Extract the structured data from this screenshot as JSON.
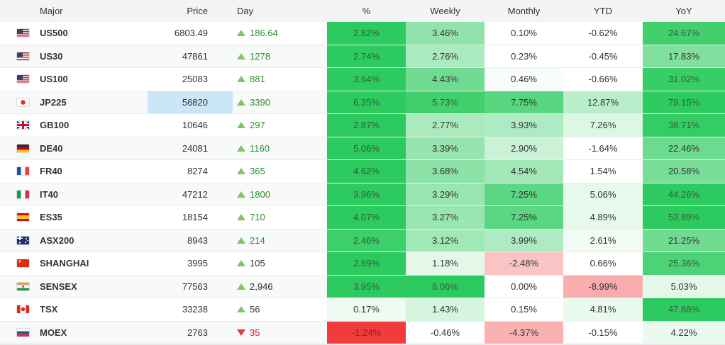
{
  "colors": {
    "green_base": "#2dcb5f",
    "red_base": "#f23b3b",
    "price_highlight": "#cbe7f7",
    "day_up_text": "#2f8c2f",
    "day_neutral_text": "#333333",
    "day_down_text": "#cc2222",
    "triangle_up": "#7fc567",
    "triangle_down": "#e23b3b",
    "heat_text": "#333333",
    "heat_text_strong_green": "#315c3d",
    "heat_text_strong_red": "#941f1f",
    "header_bg": "#f4f4f4",
    "row_alt_bg": "#f8f9f9",
    "border": "#ebecec"
  },
  "table": {
    "columns": [
      {
        "key": "major",
        "label": "Major"
      },
      {
        "key": "price",
        "label": "Price"
      },
      {
        "key": "day",
        "label": "Day"
      },
      {
        "key": "pct",
        "label": "%"
      },
      {
        "key": "weekly",
        "label": "Weekly"
      },
      {
        "key": "monthly",
        "label": "Monthly"
      },
      {
        "key": "ytd",
        "label": "YTD"
      },
      {
        "key": "yoy",
        "label": "YoY"
      }
    ],
    "rows": [
      {
        "flag": "us",
        "symbol": "US500",
        "price": "6803.49",
        "price_highlighted": false,
        "day": {
          "value": "186.64",
          "direction": "up",
          "value_color": "green"
        },
        "heat": [
          {
            "v": "2.82%",
            "tone": "green",
            "a": 1
          },
          {
            "v": "3.46%",
            "tone": "green",
            "a": 0.53
          },
          {
            "v": "0.10%",
            "tone": "none",
            "a": 0
          },
          {
            "v": "-0.62%",
            "tone": "none",
            "a": 0
          },
          {
            "v": "24.67%",
            "tone": "green",
            "a": 0.9
          }
        ]
      },
      {
        "flag": "us",
        "symbol": "US30",
        "price": "47861",
        "price_highlighted": false,
        "day": {
          "value": "1278",
          "direction": "up",
          "value_color": "green"
        },
        "heat": [
          {
            "v": "2.74%",
            "tone": "green",
            "a": 1
          },
          {
            "v": "2.76%",
            "tone": "green",
            "a": 0.4
          },
          {
            "v": "0.23%",
            "tone": "none",
            "a": 0
          },
          {
            "v": "-0.45%",
            "tone": "none",
            "a": 0
          },
          {
            "v": "17.83%",
            "tone": "green",
            "a": 0.6
          }
        ]
      },
      {
        "flag": "us",
        "symbol": "US100",
        "price": "25083",
        "price_highlighted": false,
        "day": {
          "value": "881",
          "direction": "up",
          "value_color": "green"
        },
        "heat": [
          {
            "v": "3.64%",
            "tone": "green",
            "a": 1
          },
          {
            "v": "4.43%",
            "tone": "green",
            "a": 0.68
          },
          {
            "v": "0.46%",
            "tone": "green",
            "a": 0.03
          },
          {
            "v": "-0.66%",
            "tone": "none",
            "a": 0
          },
          {
            "v": "31.02%",
            "tone": "green",
            "a": 0.95
          }
        ]
      },
      {
        "flag": "jp",
        "symbol": "JP225",
        "price": "56820",
        "price_highlighted": true,
        "day": {
          "value": "3390",
          "direction": "up",
          "value_color": "green"
        },
        "heat": [
          {
            "v": "6.35%",
            "tone": "green",
            "a": 1
          },
          {
            "v": "5.73%",
            "tone": "green",
            "a": 0.9
          },
          {
            "v": "7.75%",
            "tone": "green",
            "a": 0.8
          },
          {
            "v": "12.87%",
            "tone": "green",
            "a": 0.33
          },
          {
            "v": "79.15%",
            "tone": "green",
            "a": 1
          }
        ]
      },
      {
        "flag": "gb",
        "symbol": "GB100",
        "price": "10646",
        "price_highlighted": false,
        "day": {
          "value": "297",
          "direction": "up",
          "value_color": "green"
        },
        "heat": [
          {
            "v": "2.87%",
            "tone": "green",
            "a": 1
          },
          {
            "v": "2.77%",
            "tone": "green",
            "a": 0.4
          },
          {
            "v": "3.93%",
            "tone": "green",
            "a": 0.38
          },
          {
            "v": "7.26%",
            "tone": "green",
            "a": 0.16
          },
          {
            "v": "38.71%",
            "tone": "green",
            "a": 0.97
          }
        ]
      },
      {
        "flag": "de",
        "symbol": "DE40",
        "price": "24081",
        "price_highlighted": false,
        "day": {
          "value": "1160",
          "direction": "up",
          "value_color": "green"
        },
        "heat": [
          {
            "v": "5.06%",
            "tone": "green",
            "a": 1
          },
          {
            "v": "3.39%",
            "tone": "green",
            "a": 0.5
          },
          {
            "v": "2.90%",
            "tone": "green",
            "a": 0.25
          },
          {
            "v": "-1.64%",
            "tone": "none",
            "a": 0
          },
          {
            "v": "22.46%",
            "tone": "green",
            "a": 0.7
          }
        ]
      },
      {
        "flag": "fr",
        "symbol": "FR40",
        "price": "8274",
        "price_highlighted": false,
        "day": {
          "value": "365",
          "direction": "up",
          "value_color": "green"
        },
        "heat": [
          {
            "v": "4.62%",
            "tone": "green",
            "a": 1
          },
          {
            "v": "3.68%",
            "tone": "green",
            "a": 0.55
          },
          {
            "v": "4.54%",
            "tone": "green",
            "a": 0.45
          },
          {
            "v": "1.54%",
            "tone": "none",
            "a": 0
          },
          {
            "v": "20.58%",
            "tone": "green",
            "a": 0.65
          }
        ]
      },
      {
        "flag": "it",
        "symbol": "IT40",
        "price": "47212",
        "price_highlighted": false,
        "day": {
          "value": "1800",
          "direction": "up",
          "value_color": "green"
        },
        "heat": [
          {
            "v": "3.96%",
            "tone": "green",
            "a": 1
          },
          {
            "v": "3.29%",
            "tone": "green",
            "a": 0.48
          },
          {
            "v": "7.25%",
            "tone": "green",
            "a": 0.78
          },
          {
            "v": "5.06%",
            "tone": "green",
            "a": 0.12
          },
          {
            "v": "44.26%",
            "tone": "green",
            "a": 1
          }
        ]
      },
      {
        "flag": "es",
        "symbol": "ES35",
        "price": "18154",
        "price_highlighted": false,
        "day": {
          "value": "710",
          "direction": "up",
          "value_color": "green"
        },
        "heat": [
          {
            "v": "4.07%",
            "tone": "green",
            "a": 1
          },
          {
            "v": "3.27%",
            "tone": "green",
            "a": 0.48
          },
          {
            "v": "7.25%",
            "tone": "green",
            "a": 0.78
          },
          {
            "v": "4.89%",
            "tone": "green",
            "a": 0.11
          },
          {
            "v": "53.89%",
            "tone": "green",
            "a": 1
          }
        ]
      },
      {
        "flag": "au",
        "symbol": "ASX200",
        "price": "8943",
        "price_highlighted": false,
        "day": {
          "value": "214",
          "direction": "up",
          "value_color": "green"
        },
        "heat": [
          {
            "v": "2.46%",
            "tone": "green",
            "a": 0.93
          },
          {
            "v": "3.12%",
            "tone": "green",
            "a": 0.45
          },
          {
            "v": "3.99%",
            "tone": "green",
            "a": 0.38
          },
          {
            "v": "2.61%",
            "tone": "green",
            "a": 0.07
          },
          {
            "v": "21.25%",
            "tone": "green",
            "a": 0.68
          }
        ]
      },
      {
        "flag": "cn",
        "symbol": "SHANGHAI",
        "price": "3995",
        "price_highlighted": false,
        "day": {
          "value": "105",
          "direction": "up",
          "value_color": "dark"
        },
        "heat": [
          {
            "v": "2.69%",
            "tone": "green",
            "a": 1
          },
          {
            "v": "1.18%",
            "tone": "green",
            "a": 0.13
          },
          {
            "v": "-2.48%",
            "tone": "red",
            "a": 0.3
          },
          {
            "v": "0.66%",
            "tone": "none",
            "a": 0
          },
          {
            "v": "25.36%",
            "tone": "green",
            "a": 0.85
          }
        ]
      },
      {
        "flag": "in",
        "symbol": "SENSEX",
        "price": "77563",
        "price_highlighted": false,
        "day": {
          "value": "2,946",
          "direction": "up",
          "value_color": "dark"
        },
        "heat": [
          {
            "v": "3.95%",
            "tone": "green",
            "a": 1
          },
          {
            "v": "6.06%",
            "tone": "green",
            "a": 1
          },
          {
            "v": "0.00%",
            "tone": "none",
            "a": 0
          },
          {
            "v": "-8.99%",
            "tone": "red",
            "a": 0.42
          },
          {
            "v": "5.03%",
            "tone": "green",
            "a": 0.13
          }
        ]
      },
      {
        "flag": "ca",
        "symbol": "TSX",
        "price": "33238",
        "price_highlighted": false,
        "day": {
          "value": "56",
          "direction": "up",
          "value_color": "dark"
        },
        "heat": [
          {
            "v": "0.17%",
            "tone": "green",
            "a": 0.08
          },
          {
            "v": "1.43%",
            "tone": "green",
            "a": 0.2
          },
          {
            "v": "0.15%",
            "tone": "none",
            "a": 0
          },
          {
            "v": "4.81%",
            "tone": "green",
            "a": 0.1
          },
          {
            "v": "47.68%",
            "tone": "green",
            "a": 1
          }
        ]
      },
      {
        "flag": "ru",
        "symbol": "MOEX",
        "price": "2763",
        "price_highlighted": false,
        "day": {
          "value": "35",
          "direction": "down",
          "value_color": "red"
        },
        "heat": [
          {
            "v": "-1.24%",
            "tone": "red",
            "a": 1
          },
          {
            "v": "-0.46%",
            "tone": "none",
            "a": 0
          },
          {
            "v": "-4.37%",
            "tone": "red",
            "a": 0.4
          },
          {
            "v": "-0.15%",
            "tone": "none",
            "a": 0
          },
          {
            "v": "4.22%",
            "tone": "green",
            "a": 0.1
          }
        ]
      }
    ]
  }
}
